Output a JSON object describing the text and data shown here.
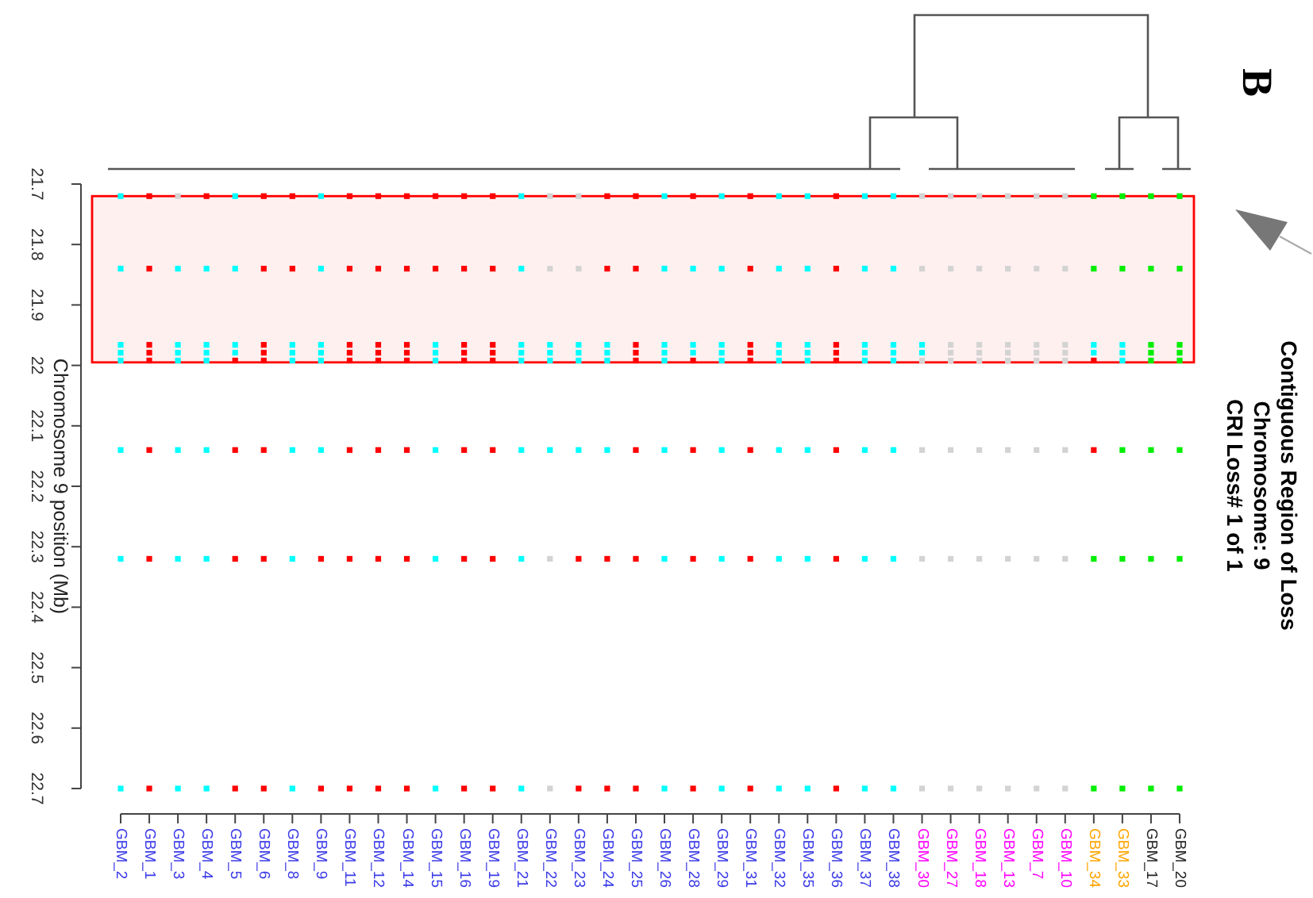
{
  "chart_data": {
    "type": "scatter",
    "title": "Contiguous Region of Loss",
    "subtitle": "Chromosome: 9",
    "ylabel": "Chromosome 9 position (Mb)",
    "annotations": [
      "CRI Loss# 1 of 1",
      "B"
    ],
    "categories": [
      "GBM_2",
      "GBM_1",
      "GBM_3",
      "GBM_4",
      "GBM_5",
      "GBM_6",
      "GBM_8",
      "GBM_9",
      "GBM_11",
      "GBM_12",
      "GBM_14",
      "GBM_15",
      "GBM_16",
      "GBM_19",
      "GBM_21",
      "GBM_22",
      "GBM_23",
      "GBM_24",
      "GBM_25",
      "GBM_26",
      "GBM_28",
      "GBM_29",
      "GBM_31",
      "GBM_32",
      "GBM_35",
      "GBM_36",
      "GBM_37",
      "GBM_38",
      "GBM_30",
      "GBM_27",
      "GBM_18",
      "GBM_13",
      "GBM_7",
      "GBM_10",
      "GBM_34",
      "GBM_33",
      "GBM_17",
      "GBM_20"
    ],
    "ylim": [
      22.7,
      21.7
    ],
    "yticks": [
      21.7,
      21.8,
      21.9,
      22,
      22.1,
      22.2,
      22.3,
      22.4,
      22.5,
      22.6,
      22.7
    ],
    "marker": "square",
    "bands": [
      {
        "axis": "y",
        "from": 21.72,
        "to": 21.995,
        "color": "#ff0000"
      }
    ],
    "series": [
      {
        "color": "#d3d3d3",
        "x": [
          "GBM_3",
          "GBM_22",
          "GBM_23",
          "GBM_30",
          "GBM_27",
          "GBM_18",
          "GBM_13",
          "GBM_7",
          "GBM_10",
          "GBM_22",
          "GBM_23",
          "GBM_30",
          "GBM_27",
          "GBM_18",
          "GBM_13",
          "GBM_7",
          "GBM_10",
          "GBM_27",
          "GBM_18",
          "GBM_13",
          "GBM_7",
          "GBM_10",
          "GBM_27",
          "GBM_18",
          "GBM_13",
          "GBM_7",
          "GBM_10",
          "GBM_30",
          "GBM_27",
          "GBM_18",
          "GBM_13",
          "GBM_7",
          "GBM_10",
          "GBM_30",
          "GBM_27",
          "GBM_18",
          "GBM_13",
          "GBM_7",
          "GBM_10",
          "GBM_22",
          "GBM_30",
          "GBM_27",
          "GBM_18",
          "GBM_13",
          "GBM_7",
          "GBM_10",
          "GBM_22",
          "GBM_30",
          "GBM_27",
          "GBM_18",
          "GBM_13",
          "GBM_7",
          "GBM_10"
        ],
        "values": [
          21.72,
          21.72,
          21.72,
          21.72,
          21.72,
          21.72,
          21.72,
          21.72,
          21.72,
          21.84,
          21.84,
          21.84,
          21.84,
          21.84,
          21.84,
          21.84,
          21.84,
          21.966,
          21.966,
          21.966,
          21.966,
          21.966,
          21.979,
          21.979,
          21.979,
          21.979,
          21.979,
          21.992,
          21.992,
          21.992,
          21.992,
          21.992,
          21.992,
          22.14,
          22.14,
          22.14,
          22.14,
          22.14,
          22.14,
          22.32,
          22.32,
          22.32,
          22.32,
          22.32,
          22.32,
          22.32,
          22.7,
          22.7,
          22.7,
          22.7,
          22.7,
          22.7,
          22.7
        ]
      },
      {
        "color": "#00ffff",
        "x": [
          "GBM_2",
          "GBM_5",
          "GBM_9",
          "GBM_21",
          "GBM_26",
          "GBM_29",
          "GBM_32",
          "GBM_35",
          "GBM_37",
          "GBM_38",
          "GBM_2",
          "GBM_3",
          "GBM_4",
          "GBM_5",
          "GBM_9",
          "GBM_21",
          "GBM_26",
          "GBM_28",
          "GBM_29",
          "GBM_32",
          "GBM_35",
          "GBM_37",
          "GBM_38",
          "GBM_2",
          "GBM_3",
          "GBM_4",
          "GBM_5",
          "GBM_8",
          "GBM_9",
          "GBM_15",
          "GBM_21",
          "GBM_22",
          "GBM_23",
          "GBM_24",
          "GBM_26",
          "GBM_28",
          "GBM_29",
          "GBM_32",
          "GBM_35",
          "GBM_37",
          "GBM_38",
          "GBM_30",
          "GBM_34",
          "GBM_33",
          "GBM_2",
          "GBM_3",
          "GBM_4",
          "GBM_5",
          "GBM_8",
          "GBM_9",
          "GBM_15",
          "GBM_21",
          "GBM_22",
          "GBM_23",
          "GBM_24",
          "GBM_26",
          "GBM_28",
          "GBM_29",
          "GBM_32",
          "GBM_35",
          "GBM_37",
          "GBM_38",
          "GBM_30",
          "GBM_34",
          "GBM_33",
          "GBM_2",
          "GBM_3",
          "GBM_4",
          "GBM_8",
          "GBM_9",
          "GBM_15",
          "GBM_21",
          "GBM_22",
          "GBM_23",
          "GBM_24",
          "GBM_26",
          "GBM_29",
          "GBM_32",
          "GBM_35",
          "GBM_37",
          "GBM_38",
          "GBM_33",
          "GBM_2",
          "GBM_3",
          "GBM_4",
          "GBM_8",
          "GBM_9",
          "GBM_15",
          "GBM_21",
          "GBM_22",
          "GBM_23",
          "GBM_24",
          "GBM_26",
          "GBM_29",
          "GBM_32",
          "GBM_35",
          "GBM_37",
          "GBM_38",
          "GBM_2",
          "GBM_3",
          "GBM_4",
          "GBM_8",
          "GBM_15",
          "GBM_21",
          "GBM_26",
          "GBM_29",
          "GBM_32",
          "GBM_35",
          "GBM_37",
          "GBM_38",
          "GBM_2",
          "GBM_3",
          "GBM_4",
          "GBM_8",
          "GBM_15",
          "GBM_21",
          "GBM_26",
          "GBM_29",
          "GBM_32",
          "GBM_35",
          "GBM_37",
          "GBM_38"
        ],
        "values": [
          21.72,
          21.72,
          21.72,
          21.72,
          21.72,
          21.72,
          21.72,
          21.72,
          21.72,
          21.72,
          21.84,
          21.84,
          21.84,
          21.84,
          21.84,
          21.84,
          21.84,
          21.84,
          21.84,
          21.84,
          21.84,
          21.84,
          21.84,
          21.966,
          21.966,
          21.966,
          21.966,
          21.966,
          21.966,
          21.966,
          21.966,
          21.966,
          21.966,
          21.966,
          21.966,
          21.966,
          21.966,
          21.966,
          21.966,
          21.966,
          21.966,
          21.966,
          21.966,
          21.966,
          21.979,
          21.979,
          21.979,
          21.979,
          21.979,
          21.979,
          21.979,
          21.979,
          21.979,
          21.979,
          21.979,
          21.979,
          21.979,
          21.979,
          21.979,
          21.979,
          21.979,
          21.979,
          21.979,
          21.979,
          21.979,
          21.992,
          21.992,
          21.992,
          21.992,
          21.992,
          21.992,
          21.992,
          21.992,
          21.992,
          21.992,
          21.992,
          21.992,
          21.992,
          21.992,
          21.992,
          21.992,
          21.992,
          22.14,
          22.14,
          22.14,
          22.14,
          22.14,
          22.14,
          22.14,
          22.14,
          22.14,
          22.14,
          22.14,
          22.14,
          22.14,
          22.14,
          22.14,
          22.14,
          22.32,
          22.32,
          22.32,
          22.32,
          22.32,
          22.32,
          22.32,
          22.32,
          22.32,
          22.32,
          22.32,
          22.32,
          22.7,
          22.7,
          22.7,
          22.7,
          22.7,
          22.7,
          22.7,
          22.7,
          22.7,
          22.7,
          22.7,
          22.7
        ]
      },
      {
        "color": "#00ee00",
        "x": [
          "GBM_34",
          "GBM_33",
          "GBM_17",
          "GBM_20",
          "GBM_34",
          "GBM_33",
          "GBM_17",
          "GBM_20",
          "GBM_17",
          "GBM_20",
          "GBM_17",
          "GBM_20",
          "GBM_17",
          "GBM_20",
          "GBM_33",
          "GBM_17",
          "GBM_20",
          "GBM_34",
          "GBM_33",
          "GBM_17",
          "GBM_20",
          "GBM_34",
          "GBM_33",
          "GBM_17",
          "GBM_20"
        ],
        "values": [
          21.72,
          21.72,
          21.72,
          21.72,
          21.84,
          21.84,
          21.84,
          21.84,
          21.966,
          21.966,
          21.979,
          21.979,
          21.992,
          21.992,
          22.14,
          22.14,
          22.14,
          22.32,
          22.32,
          22.32,
          22.32,
          22.7,
          22.7,
          22.7,
          22.7
        ]
      },
      {
        "color": "#ff0000",
        "x": [
          "GBM_1",
          "GBM_4",
          "GBM_6",
          "GBM_8",
          "GBM_11",
          "GBM_12",
          "GBM_14",
          "GBM_15",
          "GBM_16",
          "GBM_19",
          "GBM_24",
          "GBM_25",
          "GBM_28",
          "GBM_31",
          "GBM_36",
          "GBM_1",
          "GBM_6",
          "GBM_8",
          "GBM_11",
          "GBM_12",
          "GBM_14",
          "GBM_15",
          "GBM_16",
          "GBM_19",
          "GBM_24",
          "GBM_25",
          "GBM_31",
          "GBM_36",
          "GBM_1",
          "GBM_6",
          "GBM_11",
          "GBM_12",
          "GBM_14",
          "GBM_16",
          "GBM_19",
          "GBM_25",
          "GBM_31",
          "GBM_36",
          "GBM_1",
          "GBM_6",
          "GBM_11",
          "GBM_12",
          "GBM_14",
          "GBM_16",
          "GBM_19",
          "GBM_25",
          "GBM_31",
          "GBM_36",
          "GBM_1",
          "GBM_5",
          "GBM_6",
          "GBM_11",
          "GBM_12",
          "GBM_14",
          "GBM_16",
          "GBM_19",
          "GBM_25",
          "GBM_28",
          "GBM_31",
          "GBM_36",
          "GBM_34",
          "GBM_1",
          "GBM_5",
          "GBM_6",
          "GBM_11",
          "GBM_12",
          "GBM_14",
          "GBM_16",
          "GBM_19",
          "GBM_25",
          "GBM_28",
          "GBM_31",
          "GBM_36",
          "GBM_34",
          "GBM_1",
          "GBM_5",
          "GBM_6",
          "GBM_9",
          "GBM_11",
          "GBM_12",
          "GBM_14",
          "GBM_16",
          "GBM_19",
          "GBM_23",
          "GBM_24",
          "GBM_25",
          "GBM_28",
          "GBM_31",
          "GBM_36",
          "GBM_1",
          "GBM_5",
          "GBM_6",
          "GBM_9",
          "GBM_11",
          "GBM_12",
          "GBM_14",
          "GBM_16",
          "GBM_19",
          "GBM_23",
          "GBM_24",
          "GBM_25",
          "GBM_28",
          "GBM_31",
          "GBM_36"
        ],
        "values": [
          21.72,
          21.72,
          21.72,
          21.72,
          21.72,
          21.72,
          21.72,
          21.72,
          21.72,
          21.72,
          21.72,
          21.72,
          21.72,
          21.72,
          21.72,
          21.84,
          21.84,
          21.84,
          21.84,
          21.84,
          21.84,
          21.84,
          21.84,
          21.84,
          21.84,
          21.84,
          21.84,
          21.84,
          21.966,
          21.966,
          21.966,
          21.966,
          21.966,
          21.966,
          21.966,
          21.966,
          21.966,
          21.966,
          21.979,
          21.979,
          21.979,
          21.979,
          21.979,
          21.979,
          21.979,
          21.979,
          21.979,
          21.979,
          21.992,
          21.992,
          21.992,
          21.992,
          21.992,
          21.992,
          21.992,
          21.992,
          21.992,
          21.992,
          21.992,
          21.992,
          21.992,
          22.14,
          22.14,
          22.14,
          22.14,
          22.14,
          22.14,
          22.14,
          22.14,
          22.14,
          22.14,
          22.14,
          22.14,
          22.14,
          22.32,
          22.32,
          22.32,
          22.32,
          22.32,
          22.32,
          22.32,
          22.32,
          22.32,
          22.32,
          22.32,
          22.32,
          22.32,
          22.32,
          22.32,
          22.7,
          22.7,
          22.7,
          22.7,
          22.7,
          22.7,
          22.7,
          22.7,
          22.7,
          22.7,
          22.7,
          22.7,
          22.7,
          22.7,
          22.7
        ]
      }
    ]
  }
}
